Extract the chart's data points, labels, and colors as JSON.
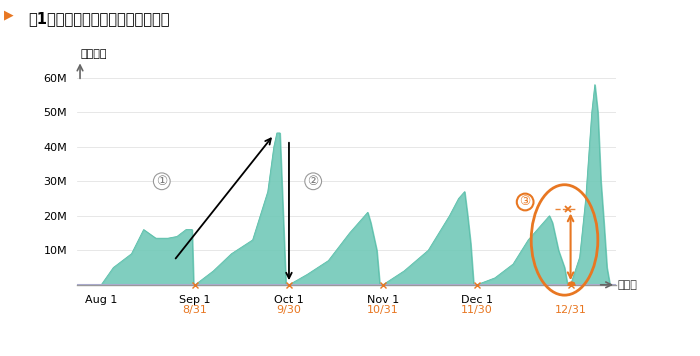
{
  "title": "図1　未成工事支出金の累積変動額",
  "ylabel": "計上金額",
  "xlabel": "計上日",
  "ylim": [
    0,
    65000000
  ],
  "yticks": [
    0,
    10000000,
    20000000,
    30000000,
    40000000,
    50000000,
    60000000
  ],
  "ytick_labels": [
    "",
    "10M",
    "20M",
    "30M",
    "40M",
    "50M",
    "60M"
  ],
  "fill_color": "#72C9B8",
  "fill_alpha": 0.9,
  "line_color": "#5BBFAA",
  "bg_color": "#ffffff",
  "grid_color": "#dddddd",
  "annotation_color": "#E87722",
  "arrow_color": "#000000",
  "baseline_color": "#AAAACC"
}
